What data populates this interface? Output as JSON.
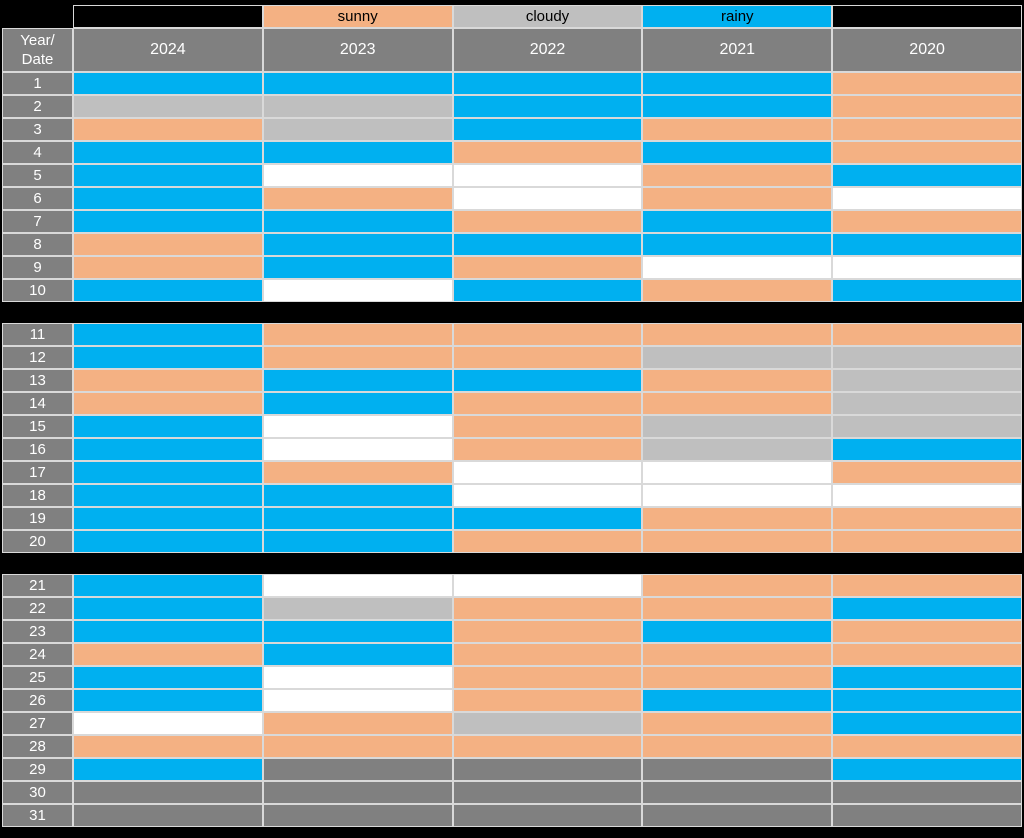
{
  "chart_data": {
    "type": "heatmap",
    "description": "Weather calendar heatmap: dates 1-31 (rows) by year (columns), cell color encodes weather category",
    "corner_header": "Year/\nDate",
    "columns": [
      "2024",
      "2023",
      "2022",
      "2021",
      "2020"
    ],
    "legend": [
      {
        "label": "sunny",
        "color": "#F4B183",
        "over_column": "2023"
      },
      {
        "label": "cloudy",
        "color": "#BFBFBF",
        "over_column": "2022"
      },
      {
        "label": "rainy",
        "color": "#00B0F0",
        "over_column": "2021"
      }
    ],
    "value_colors": {
      "sunny": "#F4B183",
      "cloudy": "#BFBFBF",
      "rainy": "#00B0F0",
      "none": "#FFFFFF",
      "na": "#808080"
    },
    "blocks": [
      {
        "rows": [
          {
            "date": "1",
            "values": [
              "rainy",
              "rainy",
              "rainy",
              "rainy",
              "sunny"
            ]
          },
          {
            "date": "2",
            "values": [
              "cloudy",
              "cloudy",
              "rainy",
              "rainy",
              "sunny"
            ]
          },
          {
            "date": "3",
            "values": [
              "sunny",
              "cloudy",
              "rainy",
              "sunny",
              "sunny"
            ]
          },
          {
            "date": "4",
            "values": [
              "rainy",
              "rainy",
              "sunny",
              "rainy",
              "sunny"
            ]
          },
          {
            "date": "5",
            "values": [
              "rainy",
              "none",
              "none",
              "sunny",
              "rainy"
            ]
          },
          {
            "date": "6",
            "values": [
              "rainy",
              "sunny",
              "none",
              "sunny",
              "none"
            ]
          },
          {
            "date": "7",
            "values": [
              "rainy",
              "rainy",
              "sunny",
              "rainy",
              "sunny"
            ]
          },
          {
            "date": "8",
            "values": [
              "sunny",
              "rainy",
              "rainy",
              "rainy",
              "rainy"
            ]
          },
          {
            "date": "9",
            "values": [
              "sunny",
              "rainy",
              "sunny",
              "none",
              "none"
            ]
          },
          {
            "date": "10",
            "values": [
              "rainy",
              "none",
              "rainy",
              "sunny",
              "rainy"
            ]
          }
        ]
      },
      {
        "rows": [
          {
            "date": "11",
            "values": [
              "rainy",
              "sunny",
              "sunny",
              "sunny",
              "sunny"
            ]
          },
          {
            "date": "12",
            "values": [
              "rainy",
              "sunny",
              "sunny",
              "cloudy",
              "cloudy"
            ]
          },
          {
            "date": "13",
            "values": [
              "sunny",
              "rainy",
              "rainy",
              "sunny",
              "cloudy"
            ]
          },
          {
            "date": "14",
            "values": [
              "sunny",
              "rainy",
              "sunny",
              "sunny",
              "cloudy"
            ]
          },
          {
            "date": "15",
            "values": [
              "rainy",
              "none",
              "sunny",
              "cloudy",
              "cloudy"
            ]
          },
          {
            "date": "16",
            "values": [
              "rainy",
              "none",
              "sunny",
              "cloudy",
              "rainy"
            ]
          },
          {
            "date": "17",
            "values": [
              "rainy",
              "sunny",
              "none",
              "none",
              "sunny"
            ]
          },
          {
            "date": "18",
            "values": [
              "rainy",
              "rainy",
              "none",
              "none",
              "none"
            ]
          },
          {
            "date": "19",
            "values": [
              "rainy",
              "rainy",
              "rainy",
              "sunny",
              "sunny"
            ]
          },
          {
            "date": "20",
            "values": [
              "rainy",
              "rainy",
              "sunny",
              "sunny",
              "sunny"
            ]
          }
        ]
      },
      {
        "rows": [
          {
            "date": "21",
            "values": [
              "rainy",
              "none",
              "none",
              "sunny",
              "sunny"
            ]
          },
          {
            "date": "22",
            "values": [
              "rainy",
              "cloudy",
              "sunny",
              "sunny",
              "rainy"
            ]
          },
          {
            "date": "23",
            "values": [
              "rainy",
              "rainy",
              "sunny",
              "rainy",
              "sunny"
            ]
          },
          {
            "date": "24",
            "values": [
              "sunny",
              "rainy",
              "sunny",
              "sunny",
              "sunny"
            ]
          },
          {
            "date": "25",
            "values": [
              "rainy",
              "none",
              "sunny",
              "sunny",
              "rainy"
            ]
          },
          {
            "date": "26",
            "values": [
              "rainy",
              "none",
              "sunny",
              "rainy",
              "rainy"
            ]
          },
          {
            "date": "27",
            "values": [
              "none",
              "sunny",
              "cloudy",
              "sunny",
              "rainy"
            ]
          },
          {
            "date": "28",
            "values": [
              "sunny",
              "sunny",
              "sunny",
              "sunny",
              "sunny"
            ]
          },
          {
            "date": "29",
            "values": [
              "rainy",
              "na",
              "na",
              "na",
              "rainy"
            ]
          },
          {
            "date": "30",
            "values": [
              "na",
              "na",
              "na",
              "na",
              "na"
            ]
          },
          {
            "date": "31",
            "values": [
              "na",
              "na",
              "na",
              "na",
              "na"
            ]
          }
        ]
      }
    ]
  }
}
